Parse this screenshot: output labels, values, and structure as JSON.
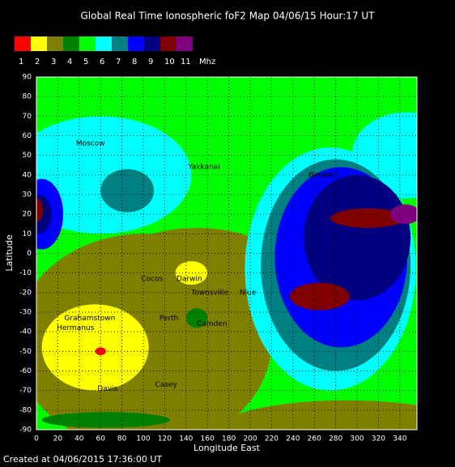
{
  "chart_data": {
    "type": "contour",
    "title": "Global Real Time Ionospheric foF2 Map  04/06/15 Hour:17 UT",
    "legend_levels": [
      1,
      2,
      3,
      4,
      5,
      6,
      7,
      8,
      9,
      10,
      11
    ],
    "legend_colors": [
      "#ff0000",
      "#ffff00",
      "#808000",
      "#008000",
      "#00ff00",
      "#00ffff",
      "#008080",
      "#0000ff",
      "#000080",
      "#800000",
      "#800080"
    ],
    "legend_unit": "Mhz",
    "background_level": 5,
    "regions": [
      {
        "level": 6,
        "lon": 60,
        "lat": 40,
        "rlon": 85,
        "rlat": 30
      },
      {
        "level": 6,
        "lon": 345,
        "lat": 50,
        "rlon": 50,
        "rlat": 22
      },
      {
        "level": 3,
        "lon": 100,
        "lat": -45,
        "rlon": 120,
        "rlat": 55
      },
      {
        "level": 3,
        "lon": 290,
        "lat": -90,
        "rlon": 120,
        "rlat": 15
      },
      {
        "level": 3,
        "lon": 150,
        "lat": -5,
        "rlon": 75,
        "rlat": 18
      },
      {
        "level": 2,
        "lon": 55,
        "lat": -48,
        "rlon": 50,
        "rlat": 22
      },
      {
        "level": 2,
        "lon": 145,
        "lat": -10,
        "rlon": 15,
        "rlat": 6
      },
      {
        "level": 1,
        "lon": 60,
        "lat": -50,
        "rlon": 5,
        "rlat": 2
      },
      {
        "level": 4,
        "lon": 150,
        "lat": -33,
        "rlon": 10,
        "rlat": 5
      },
      {
        "level": 4,
        "lon": 65,
        "lat": -85,
        "rlon": 60,
        "rlat": 4
      },
      {
        "level": 7,
        "lon": 85,
        "lat": 32,
        "rlon": 25,
        "rlat": 11
      },
      {
        "level": 6,
        "lon": 275,
        "lat": -8,
        "rlon": 80,
        "rlat": 62
      },
      {
        "level": 7,
        "lon": 280,
        "lat": -6,
        "rlon": 70,
        "rlat": 54
      },
      {
        "level": 8,
        "lon": 285,
        "lat": -2,
        "rlon": 62,
        "rlat": 46
      },
      {
        "level": 9,
        "lon": 300,
        "lat": 8,
        "rlon": 50,
        "rlat": 32
      },
      {
        "level": 10,
        "lon": 310,
        "lat": 18,
        "rlon": 35,
        "rlat": 5
      },
      {
        "level": 10,
        "lon": 265,
        "lat": -22,
        "rlon": 28,
        "rlat": 7
      },
      {
        "level": 11,
        "lon": 345,
        "lat": 20,
        "rlon": 14,
        "rlat": 5
      },
      {
        "level": 8,
        "lon": 5,
        "lat": 20,
        "rlon": 20,
        "rlat": 18
      },
      {
        "level": 9,
        "lon": 2,
        "lat": 20,
        "rlon": 12,
        "rlat": 10
      },
      {
        "level": 10,
        "lon": 0,
        "lat": 22,
        "rlon": 6,
        "rlat": 6
      }
    ],
    "stations": [
      {
        "name": "Moscow",
        "lon": 37,
        "lat": 56
      },
      {
        "name": "Yakkanai",
        "lon": 142,
        "lat": 44
      },
      {
        "name": "Boulder",
        "lon": 255,
        "lat": 40
      },
      {
        "name": "Cocos",
        "lon": 98,
        "lat": -13
      },
      {
        "name": "Darwin",
        "lon": 131,
        "lat": -13
      },
      {
        "name": "Townsville",
        "lon": 145,
        "lat": -20
      },
      {
        "name": "Niue",
        "lon": 190,
        "lat": -20
      },
      {
        "name": "Perth",
        "lon": 115,
        "lat": -33
      },
      {
        "name": "Camden",
        "lon": 150,
        "lat": -36
      },
      {
        "name": "Grahamstown",
        "lon": 26,
        "lat": -33
      },
      {
        "name": "Hermanus",
        "lon": 19,
        "lat": -38
      },
      {
        "name": "Davis",
        "lon": 57,
        "lat": -69
      },
      {
        "name": "Casey",
        "lon": 111,
        "lat": -67
      }
    ],
    "xlim": [
      0,
      356
    ],
    "ylim": [
      -90,
      90
    ],
    "xticks": [
      0,
      20,
      40,
      60,
      80,
      100,
      120,
      140,
      160,
      180,
      200,
      220,
      240,
      260,
      280,
      300,
      320,
      340
    ],
    "yticks": [
      -90,
      -80,
      -70,
      -60,
      -50,
      -40,
      -30,
      -20,
      -10,
      0,
      10,
      20,
      30,
      40,
      50,
      60,
      70,
      80,
      90
    ],
    "xlabel": "Longitude East",
    "ylabel": "Latitude",
    "grid": true,
    "footer": "Created at 04/06/2015 17:36:00 UT"
  }
}
